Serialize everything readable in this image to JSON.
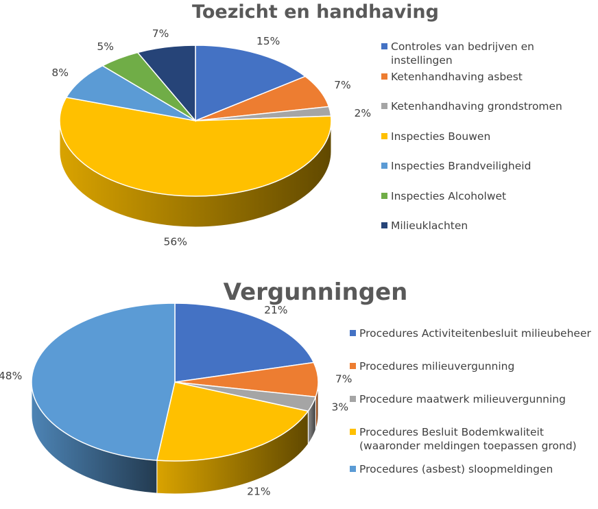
{
  "chart_data": [
    {
      "type": "pie",
      "title": "Toezicht en handhaving",
      "slices": [
        {
          "label": "Controles van bedrijven en instellingen",
          "value": 15,
          "display": "15%",
          "color": "#4472C4"
        },
        {
          "label": "Ketenhandhaving asbest",
          "value": 7,
          "display": "7%",
          "color": "#ED7D31"
        },
        {
          "label": "Ketenhandhaving grondstromen",
          "value": 2,
          "display": "2%",
          "color": "#A5A5A5"
        },
        {
          "label": "Inspecties Bouwen",
          "value": 56,
          "display": "56%",
          "color": "#FFC000"
        },
        {
          "label": "Inspecties Brandveiligheid",
          "value": 8,
          "display": "8%",
          "color": "#5B9BD5"
        },
        {
          "label": "Inspecties Alcoholwet",
          "value": 5,
          "display": "5%",
          "color": "#70AD47"
        },
        {
          "label": "Milieuklachten",
          "value": 7,
          "display": "7%",
          "color": "#264478"
        }
      ],
      "legend_position": "right"
    },
    {
      "type": "pie",
      "title": "Vergunningen",
      "slices": [
        {
          "label": "Procedures Activiteitenbesluit milieubeheer",
          "value": 21,
          "display": "21%",
          "color": "#4472C4"
        },
        {
          "label": "Procedures milieuvergunning",
          "value": 7,
          "display": "7%",
          "color": "#ED7D31"
        },
        {
          "label": "Procedure maatwerk milieuvergunning",
          "value": 3,
          "display": "3%",
          "color": "#A5A5A5"
        },
        {
          "label": "Procedures Besluit Bodemkwaliteit (waaronder meldingen toepassen grond)",
          "value": 21,
          "display": "21%",
          "color": "#FFC000"
        },
        {
          "label": "Procedures (asbest) sloopmeldingen",
          "value": 48,
          "display": "48%",
          "color": "#5B9BD5"
        }
      ],
      "legend_position": "right"
    }
  ]
}
